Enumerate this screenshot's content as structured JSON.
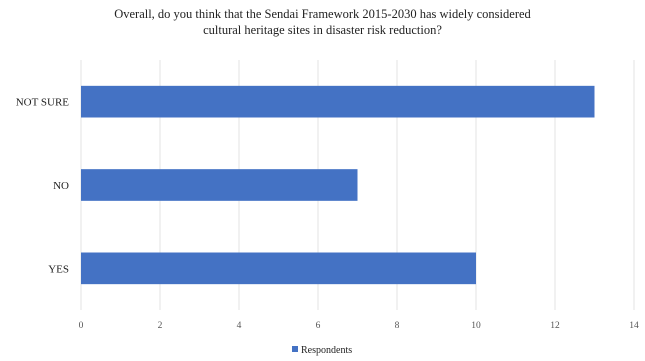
{
  "title_lines": [
    "Overall, do you think that the Sendai Framework 2015-2030 has widely considered",
    "cultural heritage sites in disaster risk reduction?"
  ],
  "chart_data": {
    "type": "bar",
    "orientation": "horizontal",
    "title": "Overall, do you think that the Sendai Framework 2015-2030 has widely considered cultural heritage sites in disaster risk reduction?",
    "categories": [
      "NOT SURE",
      "NO",
      "YES"
    ],
    "series": [
      {
        "name": "Respondents",
        "values": [
          13,
          7,
          10
        ],
        "color": "#4472C4"
      }
    ],
    "xlim": [
      0,
      14
    ],
    "x_ticks": [
      "0",
      "2",
      "4",
      "6",
      "8",
      "10",
      "12",
      "14"
    ],
    "xlabel": "",
    "ylabel": "",
    "grid": "vertical",
    "legend": {
      "position": "bottom",
      "entries": [
        "Respondents"
      ]
    }
  }
}
